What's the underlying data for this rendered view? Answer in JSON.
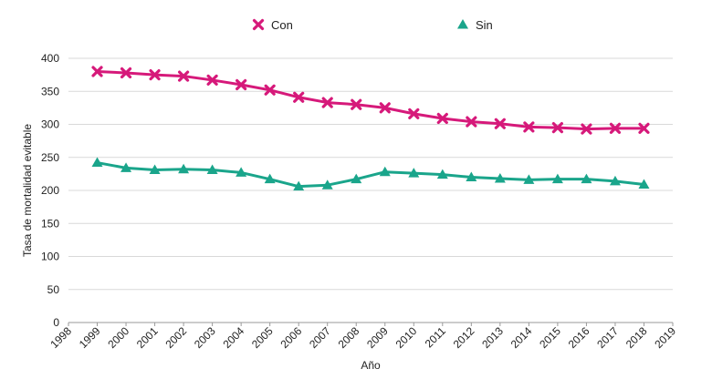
{
  "chart_data": {
    "type": "line",
    "xlabel": "Año",
    "ylabel": "Tasa de mortalidad evitable",
    "xlim": [
      1998,
      2019
    ],
    "ylim": [
      0,
      400
    ],
    "x_ticks": [
      1998,
      1999,
      2000,
      2001,
      2002,
      2003,
      2004,
      2005,
      2006,
      2007,
      2008,
      2009,
      2010,
      2011,
      2012,
      2013,
      2014,
      2015,
      2016,
      2017,
      2018,
      2019
    ],
    "y_ticks": [
      0,
      50,
      100,
      150,
      200,
      250,
      300,
      350,
      400
    ],
    "grid": "horizontal",
    "legend_position": "top",
    "x": [
      1999,
      2000,
      2001,
      2002,
      2003,
      2004,
      2005,
      2006,
      2007,
      2008,
      2009,
      2010,
      2011,
      2012,
      2013,
      2014,
      2015,
      2016,
      2017,
      2018
    ],
    "series": [
      {
        "name": "Con",
        "color": "#d6197a",
        "marker": "x",
        "values": [
          380,
          378,
          375,
          373,
          367,
          360,
          352,
          341,
          333,
          330,
          325,
          316,
          309,
          304,
          301,
          296,
          295,
          293,
          294,
          294
        ]
      },
      {
        "name": "Sin",
        "color": "#1aa58b",
        "marker": "triangle",
        "values": [
          242,
          234,
          231,
          232,
          231,
          227,
          217,
          206,
          208,
          217,
          228,
          226,
          224,
          220,
          218,
          216,
          217,
          217,
          214,
          209
        ]
      }
    ]
  }
}
